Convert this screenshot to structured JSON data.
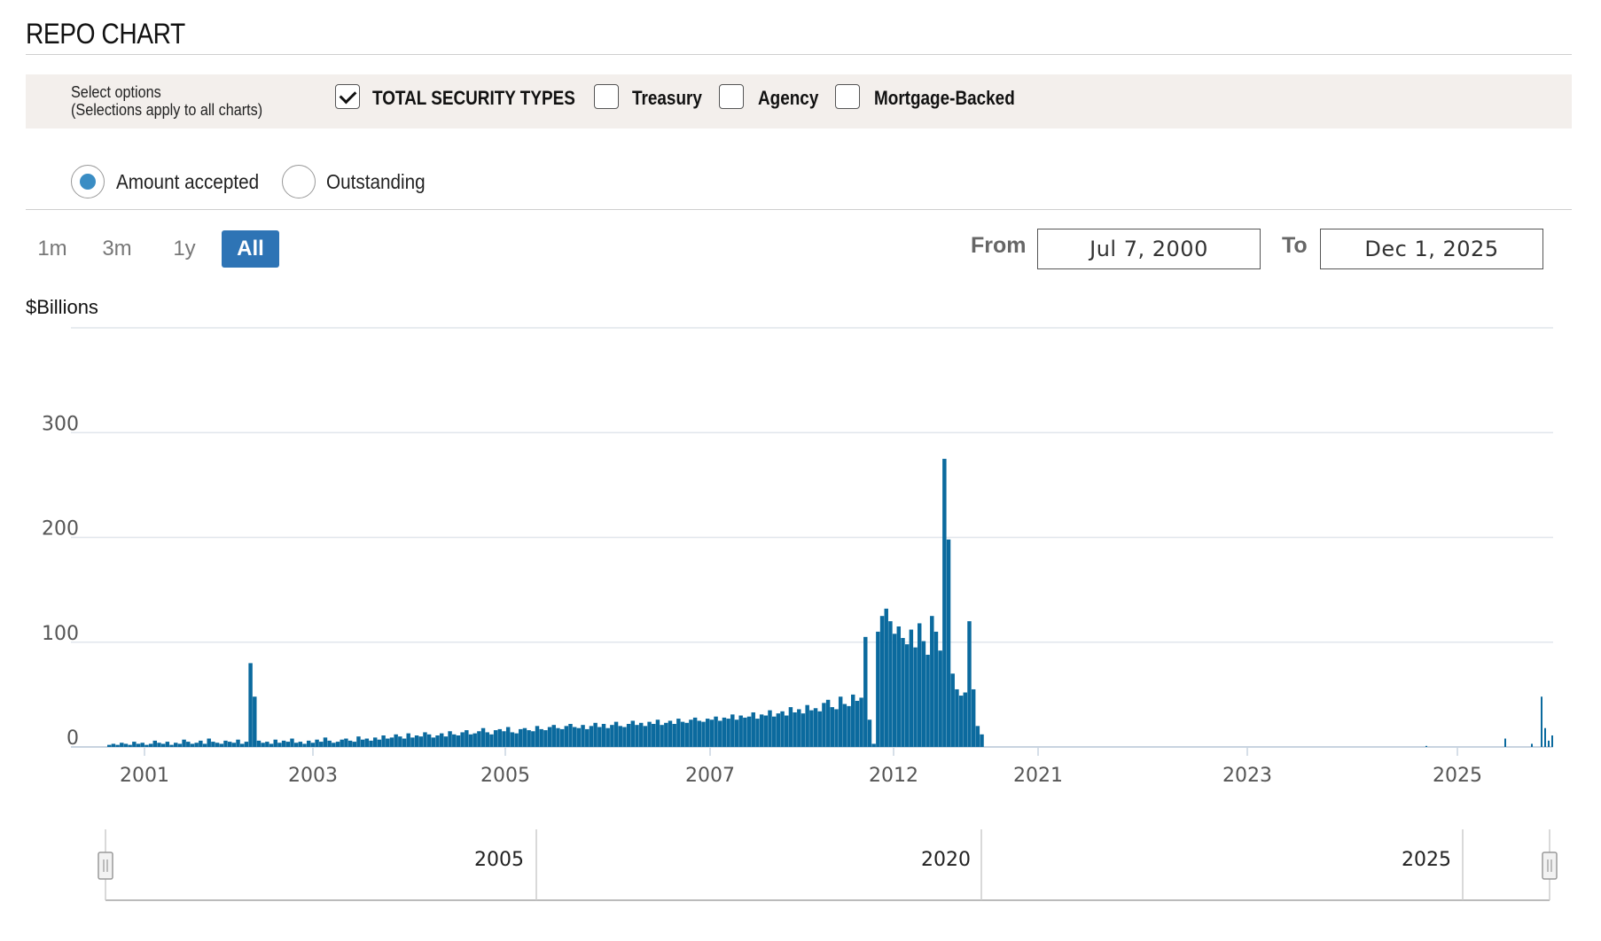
{
  "header": {
    "title": "REPO CHART"
  },
  "options": {
    "label_line1": "Select options",
    "label_line2": "(Selections apply to all charts)",
    "checkboxes": [
      {
        "label": "TOTAL SECURITY TYPES",
        "checked": true
      },
      {
        "label": "Treasury",
        "checked": false
      },
      {
        "label": "Agency",
        "checked": false
      },
      {
        "label": "Mortgage-Backed",
        "checked": false
      }
    ]
  },
  "view": {
    "radios": [
      {
        "label": "Amount accepted",
        "selected": true
      },
      {
        "label": "Outstanding",
        "selected": false
      }
    ]
  },
  "range": {
    "buttons": [
      "1m",
      "3m",
      "1y",
      "All"
    ],
    "active": "All",
    "from_label": "From",
    "from_value": "Jul 7, 2000",
    "to_label": "To",
    "to_value": "Dec 1, 2025"
  },
  "colors": {
    "bar": "#0b6a9e",
    "accent": "#2e74b5",
    "options_bg": "#f3efec"
  },
  "chart_data": {
    "type": "bar",
    "title": "",
    "ylabel": "$Billions",
    "ylim": [
      0,
      400
    ],
    "yticks": [
      "0",
      "100",
      "200",
      "300"
    ],
    "xticks": [
      "2001",
      "2003",
      "2005",
      "2007",
      "2012",
      "2021",
      "2023",
      "2025"
    ],
    "navigator_labels": [
      "2005",
      "2020",
      "2025"
    ],
    "grid": true,
    "series": [
      {
        "values": [
          2,
          3,
          2,
          4,
          3,
          2,
          5,
          3,
          4,
          2,
          3,
          6,
          4,
          3,
          5,
          2,
          4,
          3,
          7,
          5,
          3,
          4,
          6,
          3,
          8,
          5,
          4,
          3,
          6,
          5,
          4,
          7,
          3,
          5,
          80,
          48,
          6,
          4,
          5,
          3,
          7,
          4,
          6,
          5,
          8,
          4,
          5,
          3,
          6,
          4,
          7,
          5,
          9,
          6,
          4,
          5,
          7,
          8,
          6,
          5,
          10,
          7,
          8,
          6,
          9,
          7,
          11,
          8,
          9,
          12,
          10,
          8,
          13,
          9,
          11,
          10,
          14,
          12,
          9,
          11,
          13,
          10,
          15,
          12,
          11,
          14,
          16,
          12,
          13,
          15,
          18,
          14,
          12,
          16,
          17,
          15,
          19,
          14,
          13,
          17,
          18,
          16,
          15,
          20,
          17,
          16,
          19,
          21,
          18,
          17,
          20,
          22,
          19,
          18,
          21,
          17,
          20,
          23,
          19,
          22,
          18,
          21,
          24,
          20,
          19,
          22,
          25,
          21,
          23,
          20,
          24,
          22,
          26,
          21,
          23,
          25,
          22,
          27,
          24,
          23,
          26,
          28,
          25,
          24,
          27,
          26,
          29,
          25,
          28,
          27,
          31,
          26,
          30,
          28,
          29,
          33,
          27,
          31,
          30,
          35,
          29,
          32,
          34,
          30,
          38,
          33,
          36,
          32,
          40,
          35,
          37,
          34,
          42,
          45,
          38,
          36,
          48,
          41,
          39,
          50,
          44,
          47,
          105,
          26,
          3,
          110,
          125,
          132,
          120,
          108,
          115,
          104,
          98,
          112,
          95,
          118,
          101,
          88,
          125,
          110,
          92,
          275,
          198,
          70,
          55,
          49,
          52,
          120,
          55,
          20,
          12
        ]
      }
    ]
  }
}
